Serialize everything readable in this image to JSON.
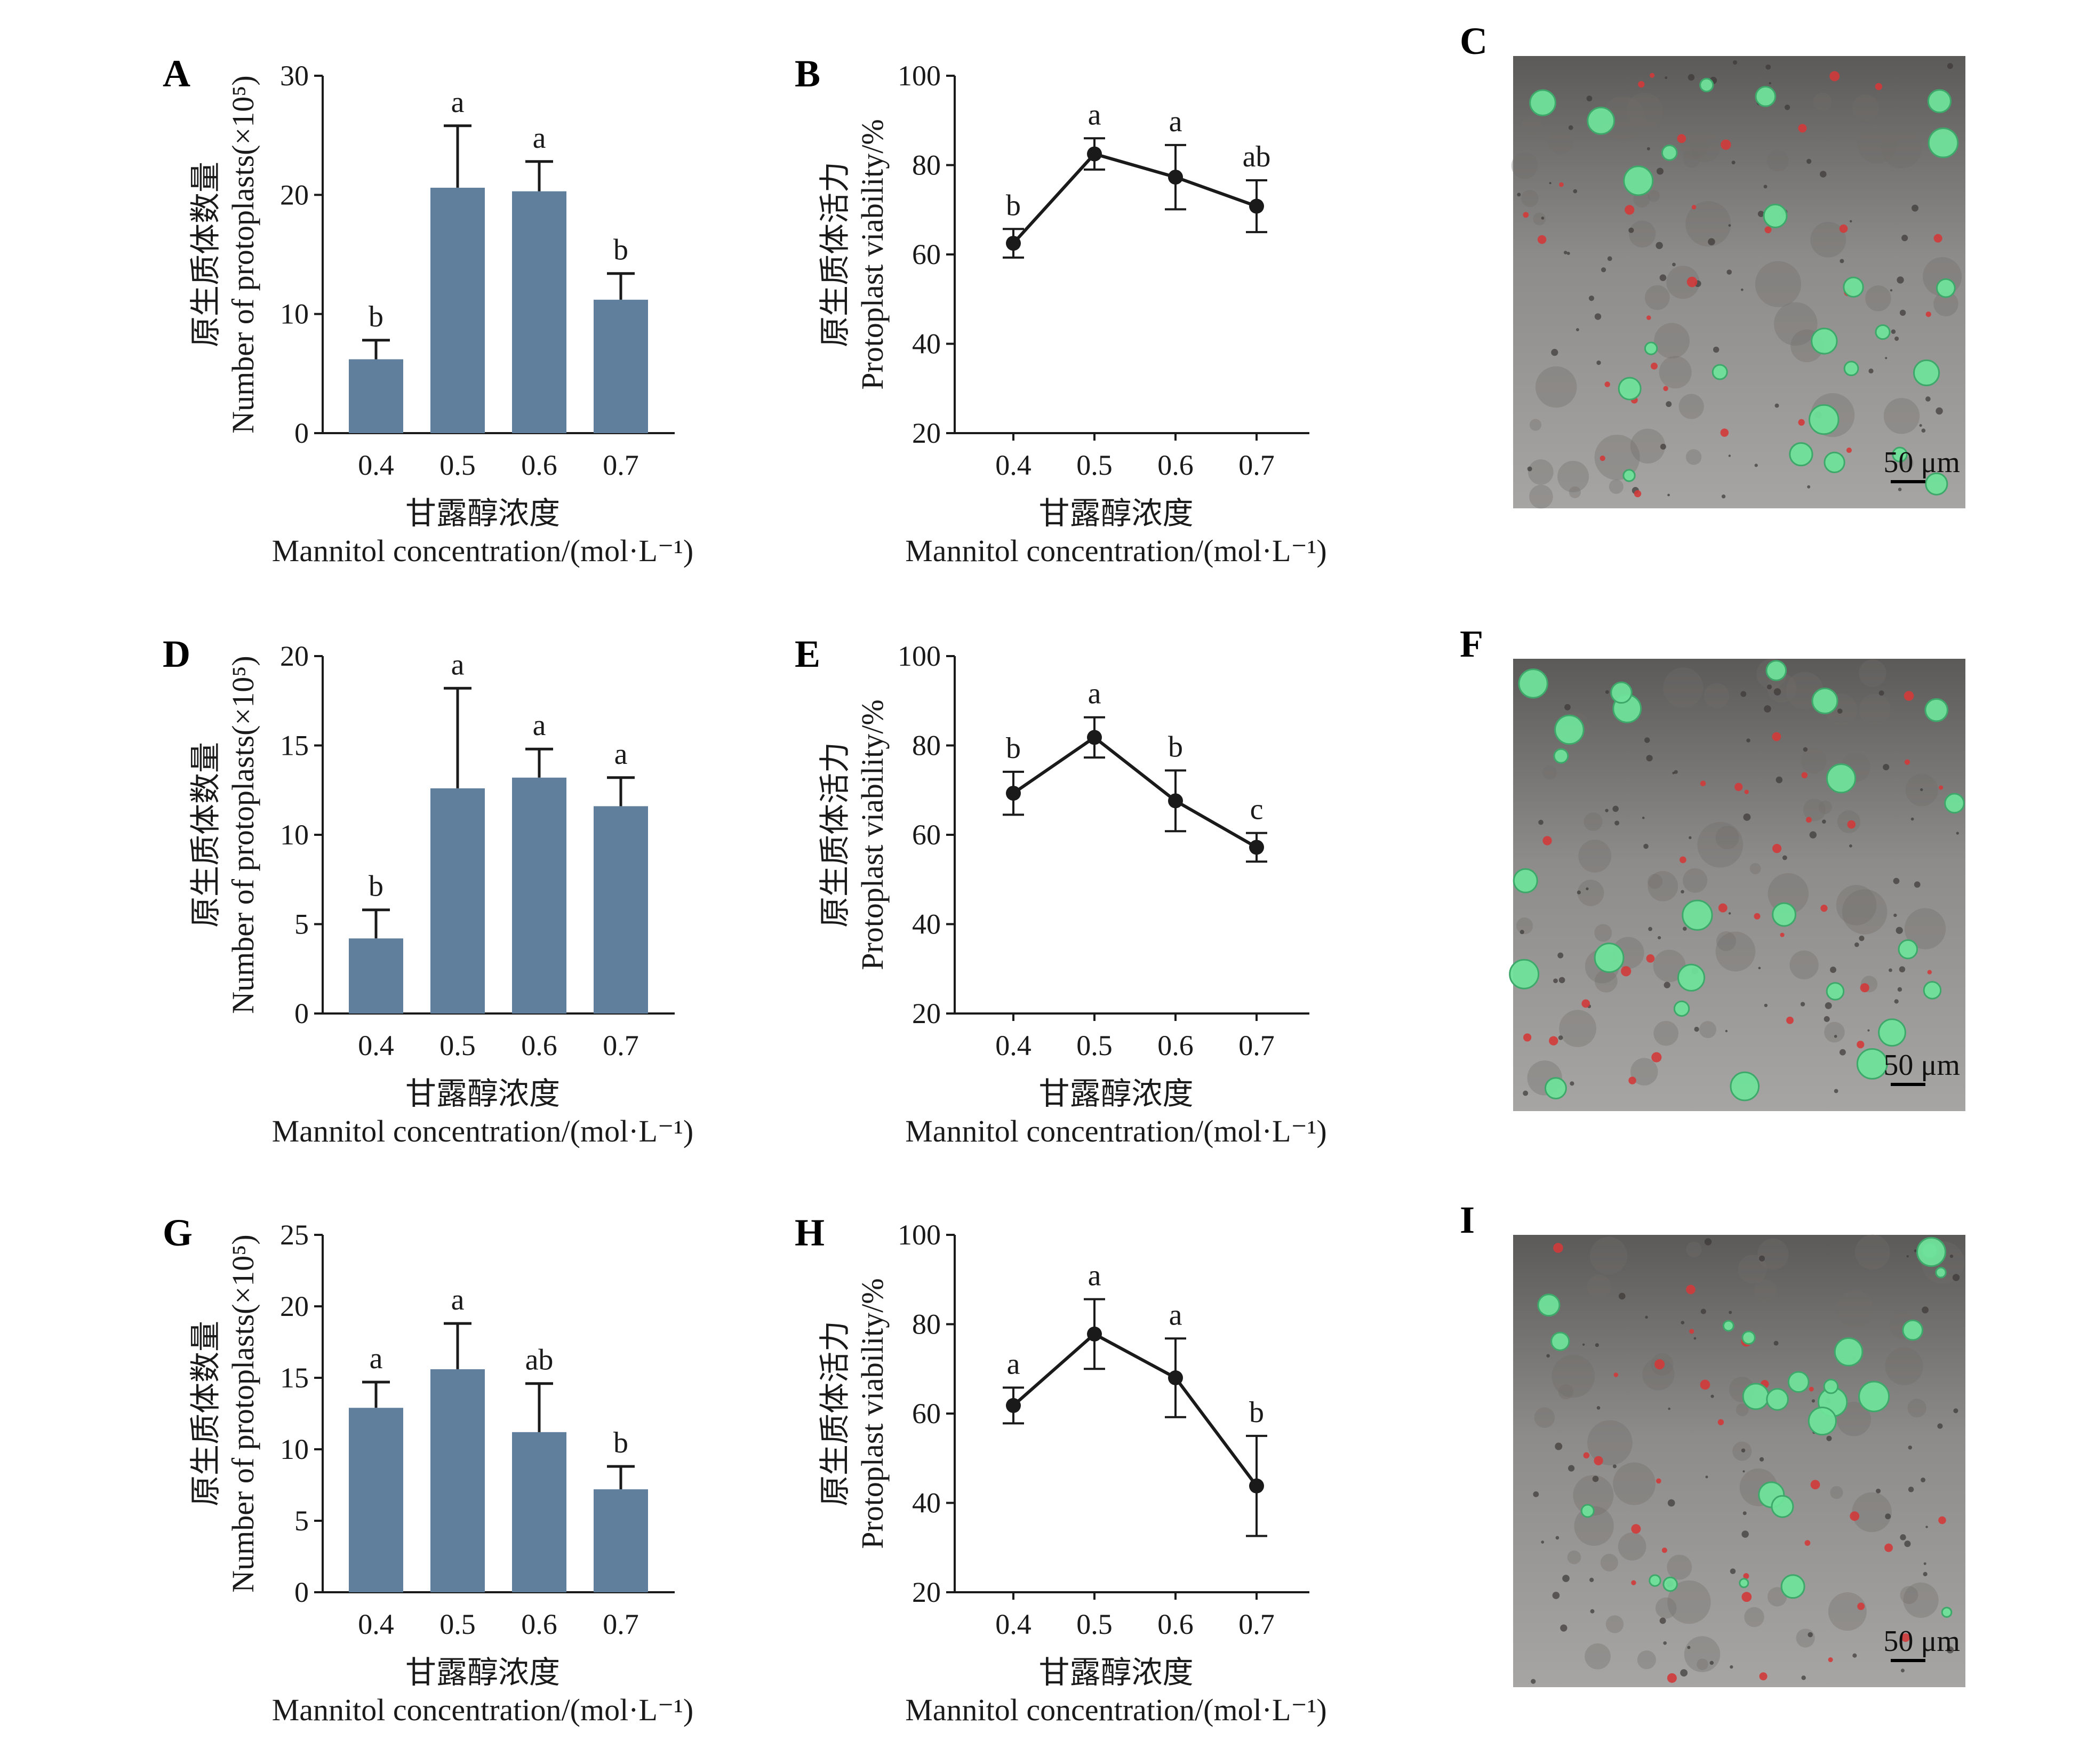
{
  "colors": {
    "bar": "#5f7f9d",
    "axis": "#1a1a1a",
    "line": "#1a1a1a"
  },
  "chart_data": [
    {
      "panel": "A",
      "type": "bar",
      "categories": [
        "0.4",
        "0.5",
        "0.6",
        "0.7"
      ],
      "values": [
        6.2,
        20.6,
        20.3,
        11.2
      ],
      "errors": [
        1.6,
        5.2,
        2.5,
        2.2
      ],
      "letters": [
        "b",
        "a",
        "a",
        "b"
      ],
      "ylim": [
        0,
        30
      ],
      "yticks": [
        0,
        10,
        20,
        30
      ],
      "ylabel_cn": "原生质体数量",
      "ylabel_en": "Number of protoplasts(×10⁵)",
      "xlabel_cn": "甘露醇浓度",
      "xlabel_en": "Mannitol concentration/(mol·L⁻¹)"
    },
    {
      "panel": "B",
      "type": "line",
      "categories": [
        "0.4",
        "0.5",
        "0.6",
        "0.7"
      ],
      "values": [
        62.5,
        82.5,
        77.3,
        70.8
      ],
      "errors": [
        3.2,
        3.5,
        7.2,
        5.8
      ],
      "letters": [
        "b",
        "a",
        "a",
        "ab"
      ],
      "ylim": [
        20,
        100
      ],
      "yticks": [
        20,
        40,
        60,
        80,
        100
      ],
      "ylabel_cn": "原生质体活力",
      "ylabel_en": "Protoplast viability/%",
      "xlabel_cn": "甘露醇浓度",
      "xlabel_en": "Mannitol concentration/(mol·L⁻¹)"
    },
    {
      "panel": "D",
      "type": "bar",
      "categories": [
        "0.4",
        "0.5",
        "0.6",
        "0.7"
      ],
      "values": [
        4.2,
        12.6,
        13.2,
        11.6
      ],
      "errors": [
        1.6,
        5.6,
        1.6,
        1.6
      ],
      "letters": [
        "b",
        "a",
        "a",
        "a"
      ],
      "ylim": [
        0,
        20
      ],
      "yticks": [
        0,
        5,
        10,
        15,
        20
      ],
      "ylabel_cn": "原生质体数量",
      "ylabel_en": "Number of protoplasts(×10⁵)",
      "xlabel_cn": "甘露醇浓度",
      "xlabel_en": "Mannitol concentration/(mol·L⁻¹)"
    },
    {
      "panel": "E",
      "type": "line",
      "categories": [
        "0.4",
        "0.5",
        "0.6",
        "0.7"
      ],
      "values": [
        69.3,
        81.8,
        67.6,
        57.2
      ],
      "errors": [
        4.8,
        4.5,
        6.8,
        3.2
      ],
      "letters": [
        "b",
        "a",
        "b",
        "c"
      ],
      "ylim": [
        20,
        100
      ],
      "yticks": [
        20,
        40,
        60,
        80,
        100
      ],
      "ylabel_cn": "原生质体活力",
      "ylabel_en": "Protoplast viability/%",
      "xlabel_cn": "甘露醇浓度",
      "xlabel_en": "Mannitol concentration/(mol·L⁻¹)"
    },
    {
      "panel": "G",
      "type": "bar",
      "categories": [
        "0.4",
        "0.5",
        "0.6",
        "0.7"
      ],
      "values": [
        12.9,
        15.6,
        11.2,
        7.2
      ],
      "errors": [
        1.8,
        3.2,
        3.4,
        1.6
      ],
      "letters": [
        "a",
        "a",
        "ab",
        "b"
      ],
      "ylim": [
        0,
        25
      ],
      "yticks": [
        0,
        5,
        10,
        15,
        20,
        25
      ],
      "ylabel_cn": "原生质体数量",
      "ylabel_en": "Number of protoplasts(×10⁵)",
      "xlabel_cn": "甘露醇浓度",
      "xlabel_en": "Mannitol concentration/(mol·L⁻¹)"
    },
    {
      "panel": "H",
      "type": "line",
      "categories": [
        "0.4",
        "0.5",
        "0.6",
        "0.7"
      ],
      "values": [
        61.8,
        77.8,
        68.0,
        43.8
      ],
      "errors": [
        4.0,
        7.8,
        8.8,
        11.2
      ],
      "letters": [
        "a",
        "a",
        "a",
        "b"
      ],
      "ylim": [
        20,
        100
      ],
      "yticks": [
        20,
        40,
        60,
        80,
        100
      ],
      "ylabel_cn": "原生质体活力",
      "ylabel_en": "Protoplast viability/%",
      "xlabel_cn": "甘露醇浓度",
      "xlabel_en": "Mannitol concentration/(mol·L⁻¹)"
    }
  ],
  "images": [
    {
      "panel": "C",
      "scale_label": "50 μm"
    },
    {
      "panel": "F",
      "scale_label": "50 μm"
    },
    {
      "panel": "I",
      "scale_label": "50 μm"
    }
  ]
}
